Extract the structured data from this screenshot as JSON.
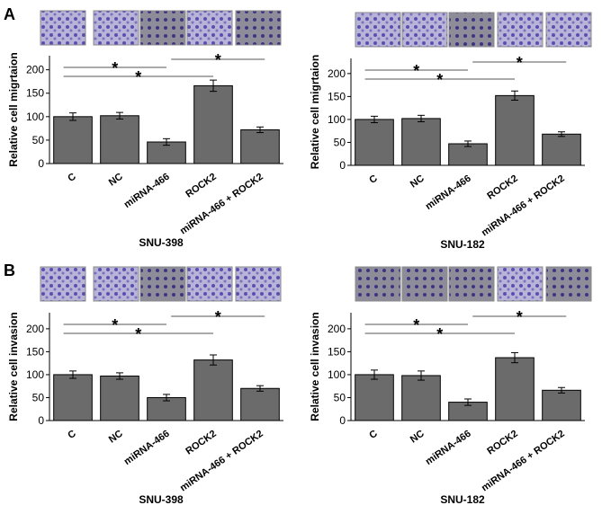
{
  "chart_data": [
    {
      "type": "bar",
      "panel": "A",
      "y_label": "Relative cell migrtaion",
      "x_label": "SNU-398",
      "categories": [
        "C",
        "NC",
        "miRNA-466",
        "ROCK2",
        "miRNA-466 + ROCK2"
      ],
      "values": [
        100,
        102,
        46,
        166,
        72
      ],
      "errors": [
        8,
        7,
        7,
        12,
        6
      ],
      "color": "#6b6b6b",
      "ylim": [
        0,
        230
      ],
      "yticks": [
        0,
        50,
        100,
        150,
        200
      ],
      "annotations": [
        "*",
        "*",
        "*"
      ]
    },
    {
      "type": "bar",
      "y_label": "Relative cell migrtaion",
      "x_label": "SNU-182",
      "categories": [
        "C",
        "NC",
        "miRNA-466",
        "ROCK2",
        "miRNA-466 + ROCK2"
      ],
      "values": [
        100,
        102,
        47,
        152,
        68
      ],
      "errors": [
        7,
        7,
        6,
        10,
        5
      ],
      "color": "#6b6b6b",
      "ylim": [
        0,
        233
      ],
      "yticks": [
        0,
        50,
        100,
        150,
        200
      ],
      "annotations": [
        "*",
        "*",
        "*"
      ]
    },
    {
      "type": "bar",
      "panel": "B",
      "y_label": "Relative cell invasion",
      "x_label": "SNU-398",
      "categories": [
        "C",
        "NC",
        "miRNA-466",
        "ROCK2",
        "miRNA-466 + ROCK2"
      ],
      "values": [
        100,
        97,
        50,
        132,
        70
      ],
      "errors": [
        8,
        7,
        7,
        11,
        6
      ],
      "color": "#6b6b6b",
      "ylim": [
        0,
        235
      ],
      "yticks": [
        0,
        50,
        100,
        150,
        200
      ],
      "annotations": [
        "*",
        "*",
        "*"
      ]
    },
    {
      "type": "bar",
      "y_label": "Relative cell invasion",
      "x_label": "SNU-182",
      "categories": [
        "C",
        "NC",
        "miRNA-466",
        "ROCK2",
        "miRNA-466 + ROCK2"
      ],
      "values": [
        100,
        98,
        40,
        137,
        66
      ],
      "errors": [
        10,
        10,
        7,
        11,
        6
      ],
      "color": "#6b6b6b",
      "ylim": [
        0,
        235
      ],
      "yticks": [
        0,
        50,
        100,
        150,
        200
      ],
      "annotations": [
        "*",
        "*",
        "*"
      ]
    }
  ]
}
